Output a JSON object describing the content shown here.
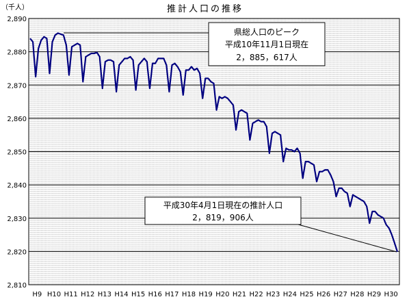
{
  "chart_data": {
    "type": "line",
    "title": "推計人口の推移",
    "ylabel": "（千人）",
    "xlabel": "",
    "ylim": [
      2810,
      2890
    ],
    "yticks": [
      2810,
      2820,
      2830,
      2840,
      2850,
      2860,
      2870,
      2880,
      2890
    ],
    "ytick_labels": [
      "2,810",
      "2,820",
      "2,830",
      "2,840",
      "2,850",
      "2,860",
      "2,870",
      "2,880",
      "2,890"
    ],
    "categories": [
      "H9",
      "H10",
      "H11",
      "H12",
      "H13",
      "H14",
      "H15",
      "H16",
      "H17",
      "H18",
      "H19",
      "H20",
      "H21",
      "H22",
      "H23",
      "H24",
      "H25",
      "H26",
      "H27",
      "H28",
      "H29",
      "H30"
    ],
    "grid": true,
    "line_color": "#000080",
    "series": [
      {
        "values": [
          [
            2884.0,
            2883.0,
            2872.5,
            2881.0,
            2883.5,
            2884.5,
            2884.0,
            2873.5,
            2883.0,
            2885.0,
            2885.6,
            2885.3
          ],
          [
            2885.0,
            2882.0,
            2873.0,
            2881.5,
            2882.0,
            2882.5,
            2882.0,
            2871.0,
            2878.5,
            2879.0,
            2879.5,
            2879.5
          ],
          [
            2879.8,
            2878.5,
            2869.0,
            2877.0,
            2877.5,
            2877.5,
            2877.0,
            2868.0,
            2876.0,
            2877.0,
            2878.0,
            2878.0
          ],
          [
            2878.5,
            2877.5,
            2868.5,
            2876.0,
            2877.0,
            2878.0,
            2877.0,
            2869.0,
            2876.5,
            2876.5,
            2878.0,
            2878.0
          ],
          [
            2878.0,
            2876.0,
            2868.0,
            2876.0,
            2876.5,
            2875.5,
            2874.0,
            2867.0,
            2874.5,
            2874.5,
            2875.5,
            2874.5
          ],
          [
            2875.0,
            2873.5,
            2866.0,
            2872.0,
            2872.0,
            2871.0,
            2870.5,
            2862.5,
            2866.5,
            2866.0,
            2866.5,
            2866.0
          ],
          [
            2865.0,
            2864.0,
            2856.5,
            2862.0,
            2862.5,
            2862.0,
            2861.5,
            2853.5,
            2858.5,
            2859.0,
            2859.5,
            2859.0
          ],
          [
            2859.0,
            2857.5,
            2849.5,
            2855.5,
            2856.0,
            2855.5,
            2855.0,
            2847.0,
            2851.0,
            2850.5,
            2850.5,
            2850.0
          ],
          [
            2851.0,
            2849.5,
            2842.0,
            2847.0,
            2847.0,
            2846.5,
            2846.0,
            2841.0,
            2844.0,
            2844.0,
            2844.5,
            2844.5
          ],
          [
            2843.0,
            2841.0,
            2836.5,
            2839.0,
            2839.0,
            2838.0,
            2837.5,
            2833.5,
            2837.0,
            2836.5,
            2836.0,
            2835.5
          ],
          [
            2835.0,
            2833.5,
            2828.5,
            2832.0,
            2832.0,
            2831.0,
            2830.5,
            2830.0,
            2828.0,
            2827.0,
            2825.0,
            2822.5
          ],
          [
            2819.906
          ]
        ]
      }
    ],
    "annotations": [
      {
        "line1": "県総人口のピーク",
        "line2": "平成10年11月1日現在",
        "value_text": "2，885，617人"
      },
      {
        "line1": "平成30年4月1日現在の推計人口",
        "value_text": "2，819，906人"
      }
    ]
  }
}
